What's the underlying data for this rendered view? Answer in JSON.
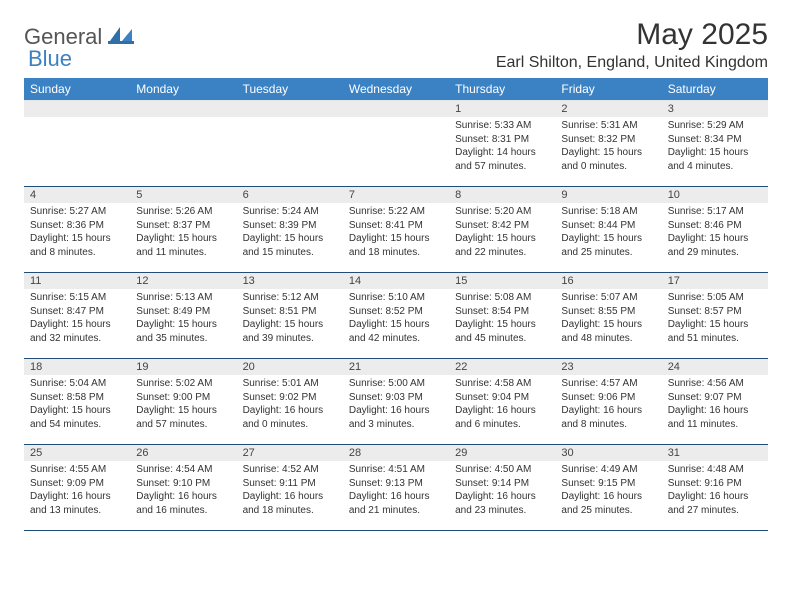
{
  "brand": {
    "gen": "General",
    "blue": "Blue"
  },
  "title": "May 2025",
  "location": "Earl Shilton, England, United Kingdom",
  "colors": {
    "header_bg": "#3b82c4",
    "header_text": "#ffffff",
    "row_divider": "#1f4e79",
    "daynum_bg": "#ececec",
    "text": "#333333"
  },
  "weekdays": [
    "Sunday",
    "Monday",
    "Tuesday",
    "Wednesday",
    "Thursday",
    "Friday",
    "Saturday"
  ],
  "weeks": [
    [
      {
        "n": "",
        "sr": "",
        "ss": "",
        "dl": ""
      },
      {
        "n": "",
        "sr": "",
        "ss": "",
        "dl": ""
      },
      {
        "n": "",
        "sr": "",
        "ss": "",
        "dl": ""
      },
      {
        "n": "",
        "sr": "",
        "ss": "",
        "dl": ""
      },
      {
        "n": "1",
        "sr": "Sunrise: 5:33 AM",
        "ss": "Sunset: 8:31 PM",
        "dl": "Daylight: 14 hours and 57 minutes."
      },
      {
        "n": "2",
        "sr": "Sunrise: 5:31 AM",
        "ss": "Sunset: 8:32 PM",
        "dl": "Daylight: 15 hours and 0 minutes."
      },
      {
        "n": "3",
        "sr": "Sunrise: 5:29 AM",
        "ss": "Sunset: 8:34 PM",
        "dl": "Daylight: 15 hours and 4 minutes."
      }
    ],
    [
      {
        "n": "4",
        "sr": "Sunrise: 5:27 AM",
        "ss": "Sunset: 8:36 PM",
        "dl": "Daylight: 15 hours and 8 minutes."
      },
      {
        "n": "5",
        "sr": "Sunrise: 5:26 AM",
        "ss": "Sunset: 8:37 PM",
        "dl": "Daylight: 15 hours and 11 minutes."
      },
      {
        "n": "6",
        "sr": "Sunrise: 5:24 AM",
        "ss": "Sunset: 8:39 PM",
        "dl": "Daylight: 15 hours and 15 minutes."
      },
      {
        "n": "7",
        "sr": "Sunrise: 5:22 AM",
        "ss": "Sunset: 8:41 PM",
        "dl": "Daylight: 15 hours and 18 minutes."
      },
      {
        "n": "8",
        "sr": "Sunrise: 5:20 AM",
        "ss": "Sunset: 8:42 PM",
        "dl": "Daylight: 15 hours and 22 minutes."
      },
      {
        "n": "9",
        "sr": "Sunrise: 5:18 AM",
        "ss": "Sunset: 8:44 PM",
        "dl": "Daylight: 15 hours and 25 minutes."
      },
      {
        "n": "10",
        "sr": "Sunrise: 5:17 AM",
        "ss": "Sunset: 8:46 PM",
        "dl": "Daylight: 15 hours and 29 minutes."
      }
    ],
    [
      {
        "n": "11",
        "sr": "Sunrise: 5:15 AM",
        "ss": "Sunset: 8:47 PM",
        "dl": "Daylight: 15 hours and 32 minutes."
      },
      {
        "n": "12",
        "sr": "Sunrise: 5:13 AM",
        "ss": "Sunset: 8:49 PM",
        "dl": "Daylight: 15 hours and 35 minutes."
      },
      {
        "n": "13",
        "sr": "Sunrise: 5:12 AM",
        "ss": "Sunset: 8:51 PM",
        "dl": "Daylight: 15 hours and 39 minutes."
      },
      {
        "n": "14",
        "sr": "Sunrise: 5:10 AM",
        "ss": "Sunset: 8:52 PM",
        "dl": "Daylight: 15 hours and 42 minutes."
      },
      {
        "n": "15",
        "sr": "Sunrise: 5:08 AM",
        "ss": "Sunset: 8:54 PM",
        "dl": "Daylight: 15 hours and 45 minutes."
      },
      {
        "n": "16",
        "sr": "Sunrise: 5:07 AM",
        "ss": "Sunset: 8:55 PM",
        "dl": "Daylight: 15 hours and 48 minutes."
      },
      {
        "n": "17",
        "sr": "Sunrise: 5:05 AM",
        "ss": "Sunset: 8:57 PM",
        "dl": "Daylight: 15 hours and 51 minutes."
      }
    ],
    [
      {
        "n": "18",
        "sr": "Sunrise: 5:04 AM",
        "ss": "Sunset: 8:58 PM",
        "dl": "Daylight: 15 hours and 54 minutes."
      },
      {
        "n": "19",
        "sr": "Sunrise: 5:02 AM",
        "ss": "Sunset: 9:00 PM",
        "dl": "Daylight: 15 hours and 57 minutes."
      },
      {
        "n": "20",
        "sr": "Sunrise: 5:01 AM",
        "ss": "Sunset: 9:02 PM",
        "dl": "Daylight: 16 hours and 0 minutes."
      },
      {
        "n": "21",
        "sr": "Sunrise: 5:00 AM",
        "ss": "Sunset: 9:03 PM",
        "dl": "Daylight: 16 hours and 3 minutes."
      },
      {
        "n": "22",
        "sr": "Sunrise: 4:58 AM",
        "ss": "Sunset: 9:04 PM",
        "dl": "Daylight: 16 hours and 6 minutes."
      },
      {
        "n": "23",
        "sr": "Sunrise: 4:57 AM",
        "ss": "Sunset: 9:06 PM",
        "dl": "Daylight: 16 hours and 8 minutes."
      },
      {
        "n": "24",
        "sr": "Sunrise: 4:56 AM",
        "ss": "Sunset: 9:07 PM",
        "dl": "Daylight: 16 hours and 11 minutes."
      }
    ],
    [
      {
        "n": "25",
        "sr": "Sunrise: 4:55 AM",
        "ss": "Sunset: 9:09 PM",
        "dl": "Daylight: 16 hours and 13 minutes."
      },
      {
        "n": "26",
        "sr": "Sunrise: 4:54 AM",
        "ss": "Sunset: 9:10 PM",
        "dl": "Daylight: 16 hours and 16 minutes."
      },
      {
        "n": "27",
        "sr": "Sunrise: 4:52 AM",
        "ss": "Sunset: 9:11 PM",
        "dl": "Daylight: 16 hours and 18 minutes."
      },
      {
        "n": "28",
        "sr": "Sunrise: 4:51 AM",
        "ss": "Sunset: 9:13 PM",
        "dl": "Daylight: 16 hours and 21 minutes."
      },
      {
        "n": "29",
        "sr": "Sunrise: 4:50 AM",
        "ss": "Sunset: 9:14 PM",
        "dl": "Daylight: 16 hours and 23 minutes."
      },
      {
        "n": "30",
        "sr": "Sunrise: 4:49 AM",
        "ss": "Sunset: 9:15 PM",
        "dl": "Daylight: 16 hours and 25 minutes."
      },
      {
        "n": "31",
        "sr": "Sunrise: 4:48 AM",
        "ss": "Sunset: 9:16 PM",
        "dl": "Daylight: 16 hours and 27 minutes."
      }
    ]
  ]
}
